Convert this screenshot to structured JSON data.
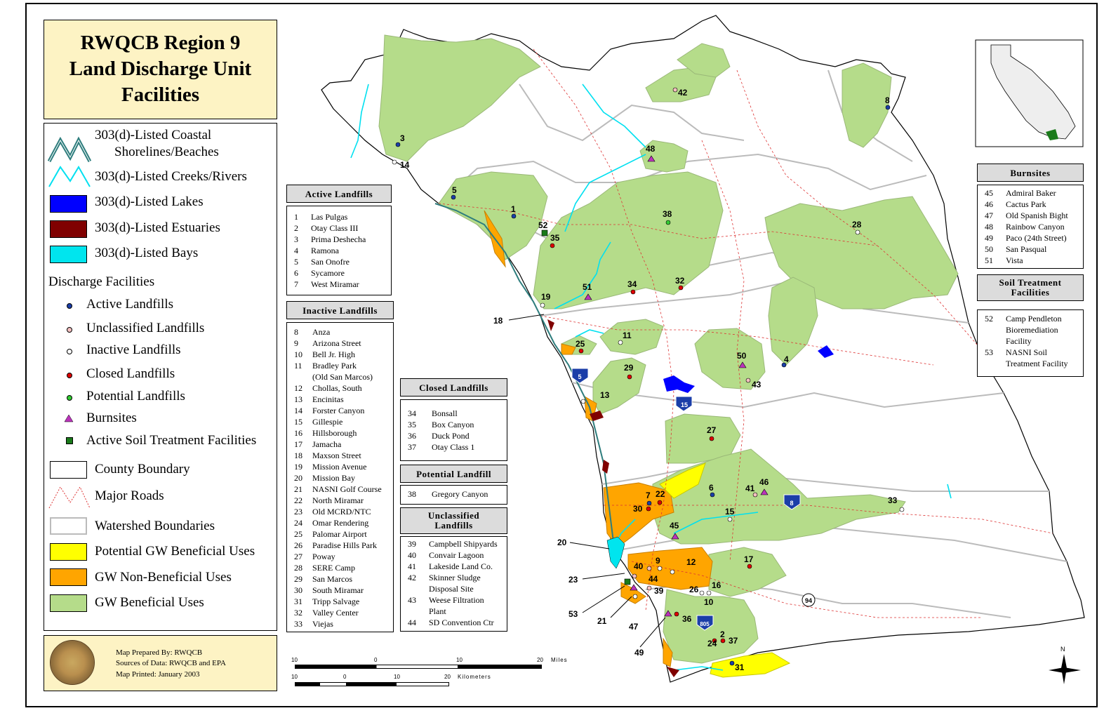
{
  "title": {
    "line1": "RWQCB Region 9",
    "line2": "Land Discharge Unit",
    "line3": "Facilities"
  },
  "legend": {
    "coastal": {
      "line1": "303(d)-Listed Coastal",
      "line2": "Shorelines/Beaches"
    },
    "creeks": "303(d)-Listed Creeks/Rivers",
    "lakes": "303(d)-Listed Lakes",
    "estuaries": "303(d)-Listed Estuaries",
    "bays": "303(d)-Listed Bays",
    "discharge_header": "Discharge Facilities",
    "active": "Active Landfills",
    "unclassified": "Unclassified Landfills",
    "inactive": "Inactive Landfills",
    "closed": "Closed Landfills",
    "potential": "Potential Landfills",
    "burnsites": "Burnsites",
    "soil": "Active Soil Treatment Facilities",
    "county": "County Boundary",
    "roads": "Major Roads",
    "watershed": "Watershed Boundaries",
    "pot_gw": "Potential GW Beneficial Uses",
    "gw_non": "GW Non-Beneficial Uses",
    "gw_ben": "GW Beneficial Uses",
    "colors": {
      "lakes": "#0000ff",
      "estuaries": "#800000",
      "bays": "#00e5ee",
      "pot_gw": "#ffff00",
      "gw_non": "#ffa500",
      "gw_ben": "#b5dc8a",
      "creeks": "#00e0f0",
      "coastal": "#2e7d7d"
    }
  },
  "credit": {
    "l1": "Map Prepared By:  RWQCB",
    "l2": "Sources of Data:  RWQCB and EPA",
    "l3": "Map Printed:  January 2003"
  },
  "active_landfills": {
    "title": "Active Landfills",
    "rows": [
      [
        "1",
        "Las Pulgas"
      ],
      [
        "2",
        "Otay Class III"
      ],
      [
        "3",
        "Prima Deshecha"
      ],
      [
        "4",
        "Ramona"
      ],
      [
        "5",
        "San Onofre"
      ],
      [
        "6",
        "Sycamore"
      ],
      [
        "7",
        "West Miramar"
      ]
    ]
  },
  "inactive_landfills": {
    "title": "Inactive Landfills",
    "rows": [
      [
        "8",
        "Anza"
      ],
      [
        "9",
        "Arizona Street"
      ],
      [
        "10",
        "Bell Jr. High"
      ],
      [
        "11",
        "Bradley Park"
      ],
      [
        "",
        "(Old San Marcos)"
      ],
      [
        "12",
        "Chollas, South"
      ],
      [
        "13",
        "Encinitas"
      ],
      [
        "14",
        "Forster Canyon"
      ],
      [
        "15",
        "Gillespie"
      ],
      [
        "16",
        "Hillsborough"
      ],
      [
        "17",
        "Jamacha"
      ],
      [
        "18",
        "Maxson Street"
      ],
      [
        "19",
        "Mission Avenue"
      ],
      [
        "20",
        "Mission Bay"
      ],
      [
        "21",
        "NASNI Golf Course"
      ],
      [
        "22",
        "North Miramar"
      ],
      [
        "23",
        "Old MCRD/NTC"
      ],
      [
        "24",
        "Omar Rendering"
      ],
      [
        "25",
        "Palomar Airport"
      ],
      [
        "26",
        "Paradise Hills Park"
      ],
      [
        "27",
        "Poway"
      ],
      [
        "28",
        "SERE Camp"
      ],
      [
        "29",
        "San Marcos"
      ],
      [
        "30",
        "South Miramar"
      ],
      [
        "31",
        "Tripp Salvage"
      ],
      [
        "32",
        "Valley Center"
      ],
      [
        "33",
        "Viejas"
      ]
    ]
  },
  "closed_landfills": {
    "title": "Closed Landfills",
    "rows": [
      [
        "34",
        "Bonsall"
      ],
      [
        "35",
        "Box Canyon"
      ],
      [
        "36",
        "Duck Pond"
      ],
      [
        "37",
        "Otay Class 1"
      ]
    ]
  },
  "potential_landfill": {
    "title": "Potential Landfill",
    "rows": [
      [
        "38",
        "Gregory Canyon"
      ]
    ]
  },
  "unclassified_landfills": {
    "title1": "Unclassified",
    "title2": "Landfills",
    "rows": [
      [
        "39",
        "Campbell Shipyards"
      ],
      [
        "40",
        "Convair Lagoon"
      ],
      [
        "41",
        "Lakeside Land Co."
      ],
      [
        "42",
        "Skinner Sludge"
      ],
      [
        "",
        "Disposal Site"
      ],
      [
        "43",
        "Weese Filtration"
      ],
      [
        "",
        "Plant"
      ],
      [
        "44",
        "SD Convention Ctr"
      ]
    ]
  },
  "burnsites": {
    "title": "Burnsites",
    "rows": [
      [
        "45",
        "Admiral Baker"
      ],
      [
        "46",
        "Cactus Park"
      ],
      [
        "47",
        "Old Spanish Bight"
      ],
      [
        "48",
        "Rainbow Canyon"
      ],
      [
        "49",
        "Paco (24th Street)"
      ],
      [
        "50",
        "San Pasqual"
      ],
      [
        "51",
        "Vista"
      ]
    ]
  },
  "soil_treatment": {
    "title1": "Soil Treatment",
    "title2": "Facilities",
    "rows": [
      [
        "52",
        "Camp Pendleton"
      ],
      [
        "",
        "Bioremediation"
      ],
      [
        "",
        "Facility"
      ],
      [
        "53",
        "NASNI Soil"
      ],
      [
        "",
        "Treatment Facility"
      ]
    ]
  },
  "scale": {
    "miles_ticks": [
      "10",
      "0",
      "10",
      "20"
    ],
    "miles_unit": "Miles",
    "km_ticks": [
      "10",
      "0",
      "10",
      "20"
    ],
    "km_unit": "Kilometers"
  },
  "north": "N",
  "highways": [
    "5",
    "15",
    "8",
    "805",
    "94"
  ],
  "site_labels": [
    "1",
    "2",
    "3",
    "4",
    "5",
    "6",
    "7",
    "8",
    "9",
    "10",
    "11",
    "12",
    "13",
    "14",
    "15",
    "16",
    "17",
    "18",
    "19",
    "20",
    "21",
    "22",
    "23",
    "24",
    "25",
    "26",
    "27",
    "28",
    "29",
    "30",
    "31",
    "32",
    "33",
    "34",
    "35",
    "36",
    "37",
    "38",
    "39",
    "40",
    "41",
    "42",
    "43",
    "44",
    "45",
    "46",
    "47",
    "48",
    "49",
    "50",
    "51",
    "52",
    "53"
  ]
}
